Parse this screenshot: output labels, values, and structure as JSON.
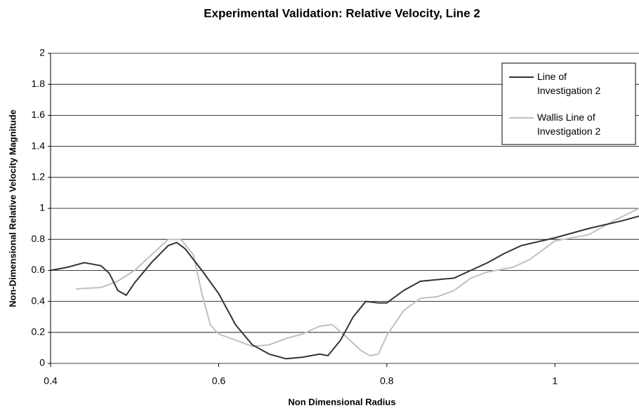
{
  "chart_data": {
    "type": "line",
    "title": "Experimental Validation: Relative Velocity, Line 2",
    "x_label": "Non Dimensional Radius",
    "y_label": "Non-Dimensional Relative Velocity Magnitude",
    "xlim": [
      0.4,
      1.1
    ],
    "xticks": [
      0.4,
      0.6,
      0.8,
      1
    ],
    "ylim": [
      0,
      2
    ],
    "yticks": [
      0,
      0.2,
      0.4,
      0.6,
      0.8,
      1,
      1.2,
      1.4,
      1.6,
      1.8,
      2
    ],
    "grid": true,
    "legend": "upper right",
    "series": [
      {
        "name": "Line of Investigation 2",
        "color": "#333333",
        "x": [
          0.4,
          0.42,
          0.44,
          0.46,
          0.47,
          0.48,
          0.49,
          0.5,
          0.52,
          0.54,
          0.55,
          0.56,
          0.58,
          0.6,
          0.62,
          0.64,
          0.66,
          0.68,
          0.7,
          0.72,
          0.73,
          0.745,
          0.76,
          0.775,
          0.79,
          0.8,
          0.82,
          0.84,
          0.86,
          0.88,
          0.9,
          0.92,
          0.94,
          0.96,
          1.0,
          1.04,
          1.08,
          1.1
        ],
        "values": [
          0.6,
          0.62,
          0.65,
          0.63,
          0.58,
          0.47,
          0.44,
          0.52,
          0.65,
          0.76,
          0.78,
          0.74,
          0.6,
          0.45,
          0.25,
          0.12,
          0.06,
          0.03,
          0.04,
          0.06,
          0.05,
          0.15,
          0.3,
          0.4,
          0.39,
          0.39,
          0.47,
          0.53,
          0.54,
          0.55,
          0.6,
          0.65,
          0.71,
          0.76,
          0.81,
          0.87,
          0.92,
          0.95
        ]
      },
      {
        "name": "Wallis Line of Investigation 2",
        "color": "#c0c0c0",
        "x": [
          0.43,
          0.46,
          0.48,
          0.5,
          0.52,
          0.54,
          0.555,
          0.57,
          0.58,
          0.59,
          0.6,
          0.62,
          0.64,
          0.66,
          0.68,
          0.7,
          0.72,
          0.735,
          0.75,
          0.77,
          0.78,
          0.79,
          0.8,
          0.82,
          0.84,
          0.86,
          0.88,
          0.9,
          0.92,
          0.95,
          0.97,
          1.0,
          1.04,
          1.07,
          1.1
        ],
        "values": [
          0.48,
          0.49,
          0.53,
          0.6,
          0.7,
          0.8,
          0.8,
          0.7,
          0.45,
          0.25,
          0.19,
          0.15,
          0.11,
          0.12,
          0.16,
          0.19,
          0.24,
          0.25,
          0.18,
          0.08,
          0.05,
          0.06,
          0.18,
          0.34,
          0.42,
          0.43,
          0.47,
          0.55,
          0.59,
          0.62,
          0.67,
          0.79,
          0.83,
          0.92,
          1.0
        ]
      }
    ]
  }
}
